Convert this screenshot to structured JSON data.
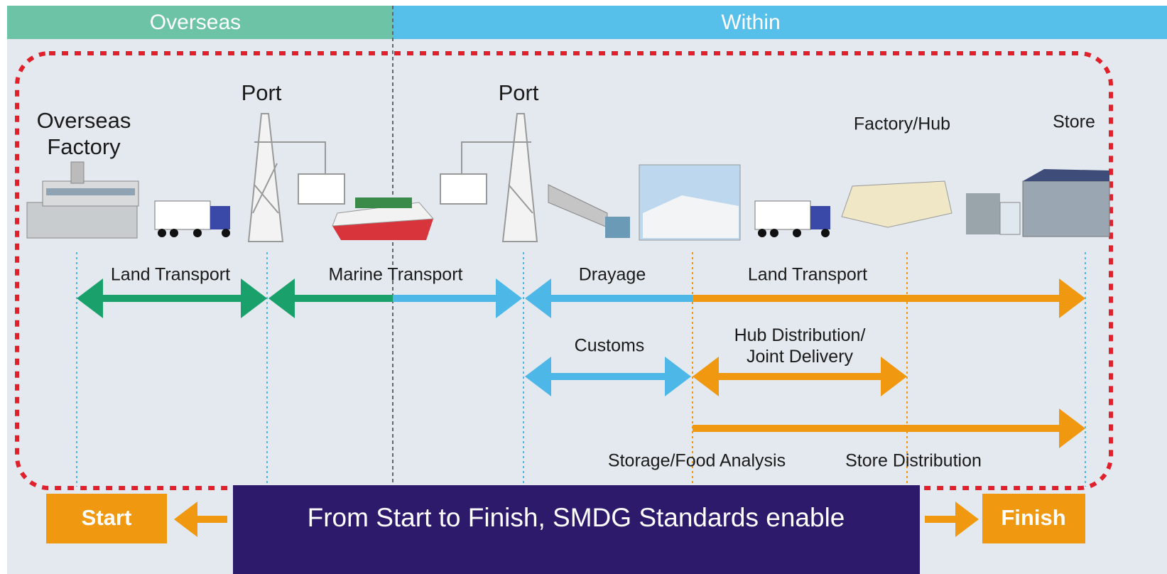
{
  "header": {
    "left": "Overseas",
    "right": "Within"
  },
  "nodes": [
    {
      "label": "Overseas\nFactory"
    },
    {
      "label": "Port"
    },
    {
      "label": "Port"
    },
    {
      "label": "Factory/Hub"
    },
    {
      "label": "Store"
    }
  ],
  "flows": [
    {
      "label": "Land Transport"
    },
    {
      "label": "Marine Transport"
    },
    {
      "label": "Drayage"
    },
    {
      "label": "Land Transport"
    },
    {
      "label": "Customs"
    },
    {
      "label": "Hub Distribution/\nJoint Delivery"
    },
    {
      "label": "Storage/Food Analysis"
    },
    {
      "label": "Store Distribution"
    }
  ],
  "footer": {
    "start": "Start",
    "finish": "Finish",
    "banner": "From Start to Finish, SMDG Standards enable"
  }
}
